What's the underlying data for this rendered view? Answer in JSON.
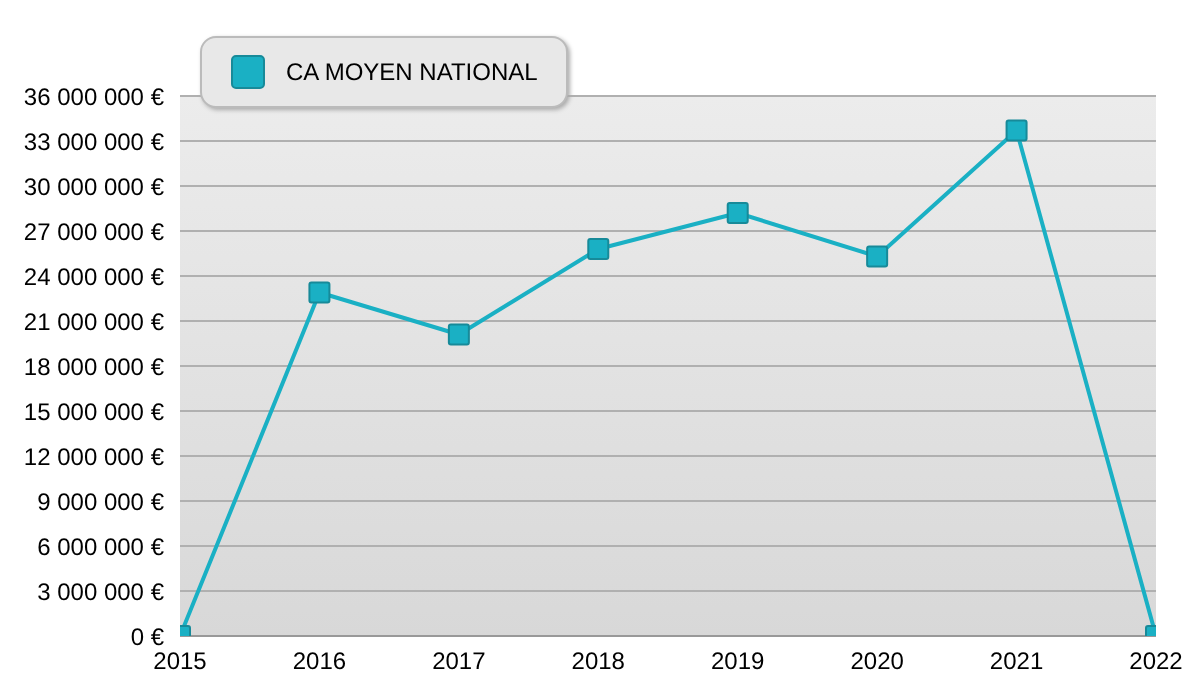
{
  "chart_data": {
    "type": "line",
    "x": [
      2015,
      2016,
      2017,
      2018,
      2019,
      2020,
      2021,
      2022
    ],
    "series": [
      {
        "name": "CA MOYEN NATIONAL",
        "color": "#1ab0c4",
        "values": [
          0,
          22900000,
          20100000,
          25800000,
          28200000,
          25300000,
          33700000,
          0
        ]
      }
    ],
    "xlim": [
      2015,
      2022
    ],
    "xticks": [
      2015,
      2016,
      2017,
      2018,
      2019,
      2020,
      2021,
      2022
    ],
    "ylim": [
      0,
      36000000
    ],
    "yticks": [
      {
        "value": 0,
        "label": "0 €"
      },
      {
        "value": 3000000,
        "label": "3 000 000 €"
      },
      {
        "value": 6000000,
        "label": "6 000 000 €"
      },
      {
        "value": 9000000,
        "label": "9 000 000 €"
      },
      {
        "value": 12000000,
        "label": "12 000 000 €"
      },
      {
        "value": 15000000,
        "label": "15 000 000 €"
      },
      {
        "value": 18000000,
        "label": "18 000 000 €"
      },
      {
        "value": 21000000,
        "label": "21 000 000 €"
      },
      {
        "value": 24000000,
        "label": "24 000 000 €"
      },
      {
        "value": 27000000,
        "label": "27 000 000 €"
      },
      {
        "value": 30000000,
        "label": "30 000 000 €"
      },
      {
        "value": 33000000,
        "label": "33 000 000 €"
      },
      {
        "value": 36000000,
        "label": "36 000 000 €"
      }
    ],
    "grid": "y",
    "legend": "top left",
    "marker": "square",
    "line_style": "solid"
  }
}
